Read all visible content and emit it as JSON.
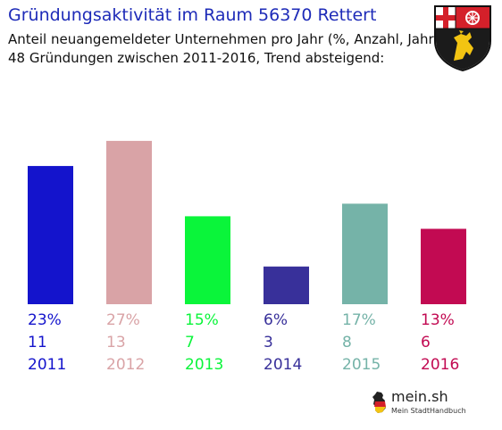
{
  "chart_data": {
    "type": "bar",
    "title": "Gründungsaktivität im Raum 56370 Rettert",
    "subtitle_lines": [
      "Anteil neuangemeldeter Unternehmen pro Jahr (%, Anzahl, Jahr)",
      "48 Gründungen zwischen 2011-2016, Trend absteigend:"
    ],
    "categories": [
      "2011",
      "2012",
      "2013",
      "2014",
      "2015",
      "2016"
    ],
    "values": [
      11,
      13,
      7,
      3,
      8,
      6
    ],
    "percent_labels": [
      "23%",
      "27%",
      "15%",
      "6%",
      "17%",
      "13%"
    ],
    "count_labels": [
      "11",
      "13",
      "7",
      "3",
      "8",
      "6"
    ],
    "colors": [
      "#1414cc",
      "#d9a3a6",
      "#0af53a",
      "#38309a",
      "#75b3a8",
      "#c20a52"
    ],
    "ylim": [
      0,
      14.2
    ],
    "grid": false,
    "legend": "none"
  },
  "logo": {
    "name": "mein.sh",
    "tagline": "Mein StadtHandbuch"
  },
  "crest_icon": "rheinland-pfalz-coat-of-arms-icon",
  "map_icon": "germany-map-icon"
}
